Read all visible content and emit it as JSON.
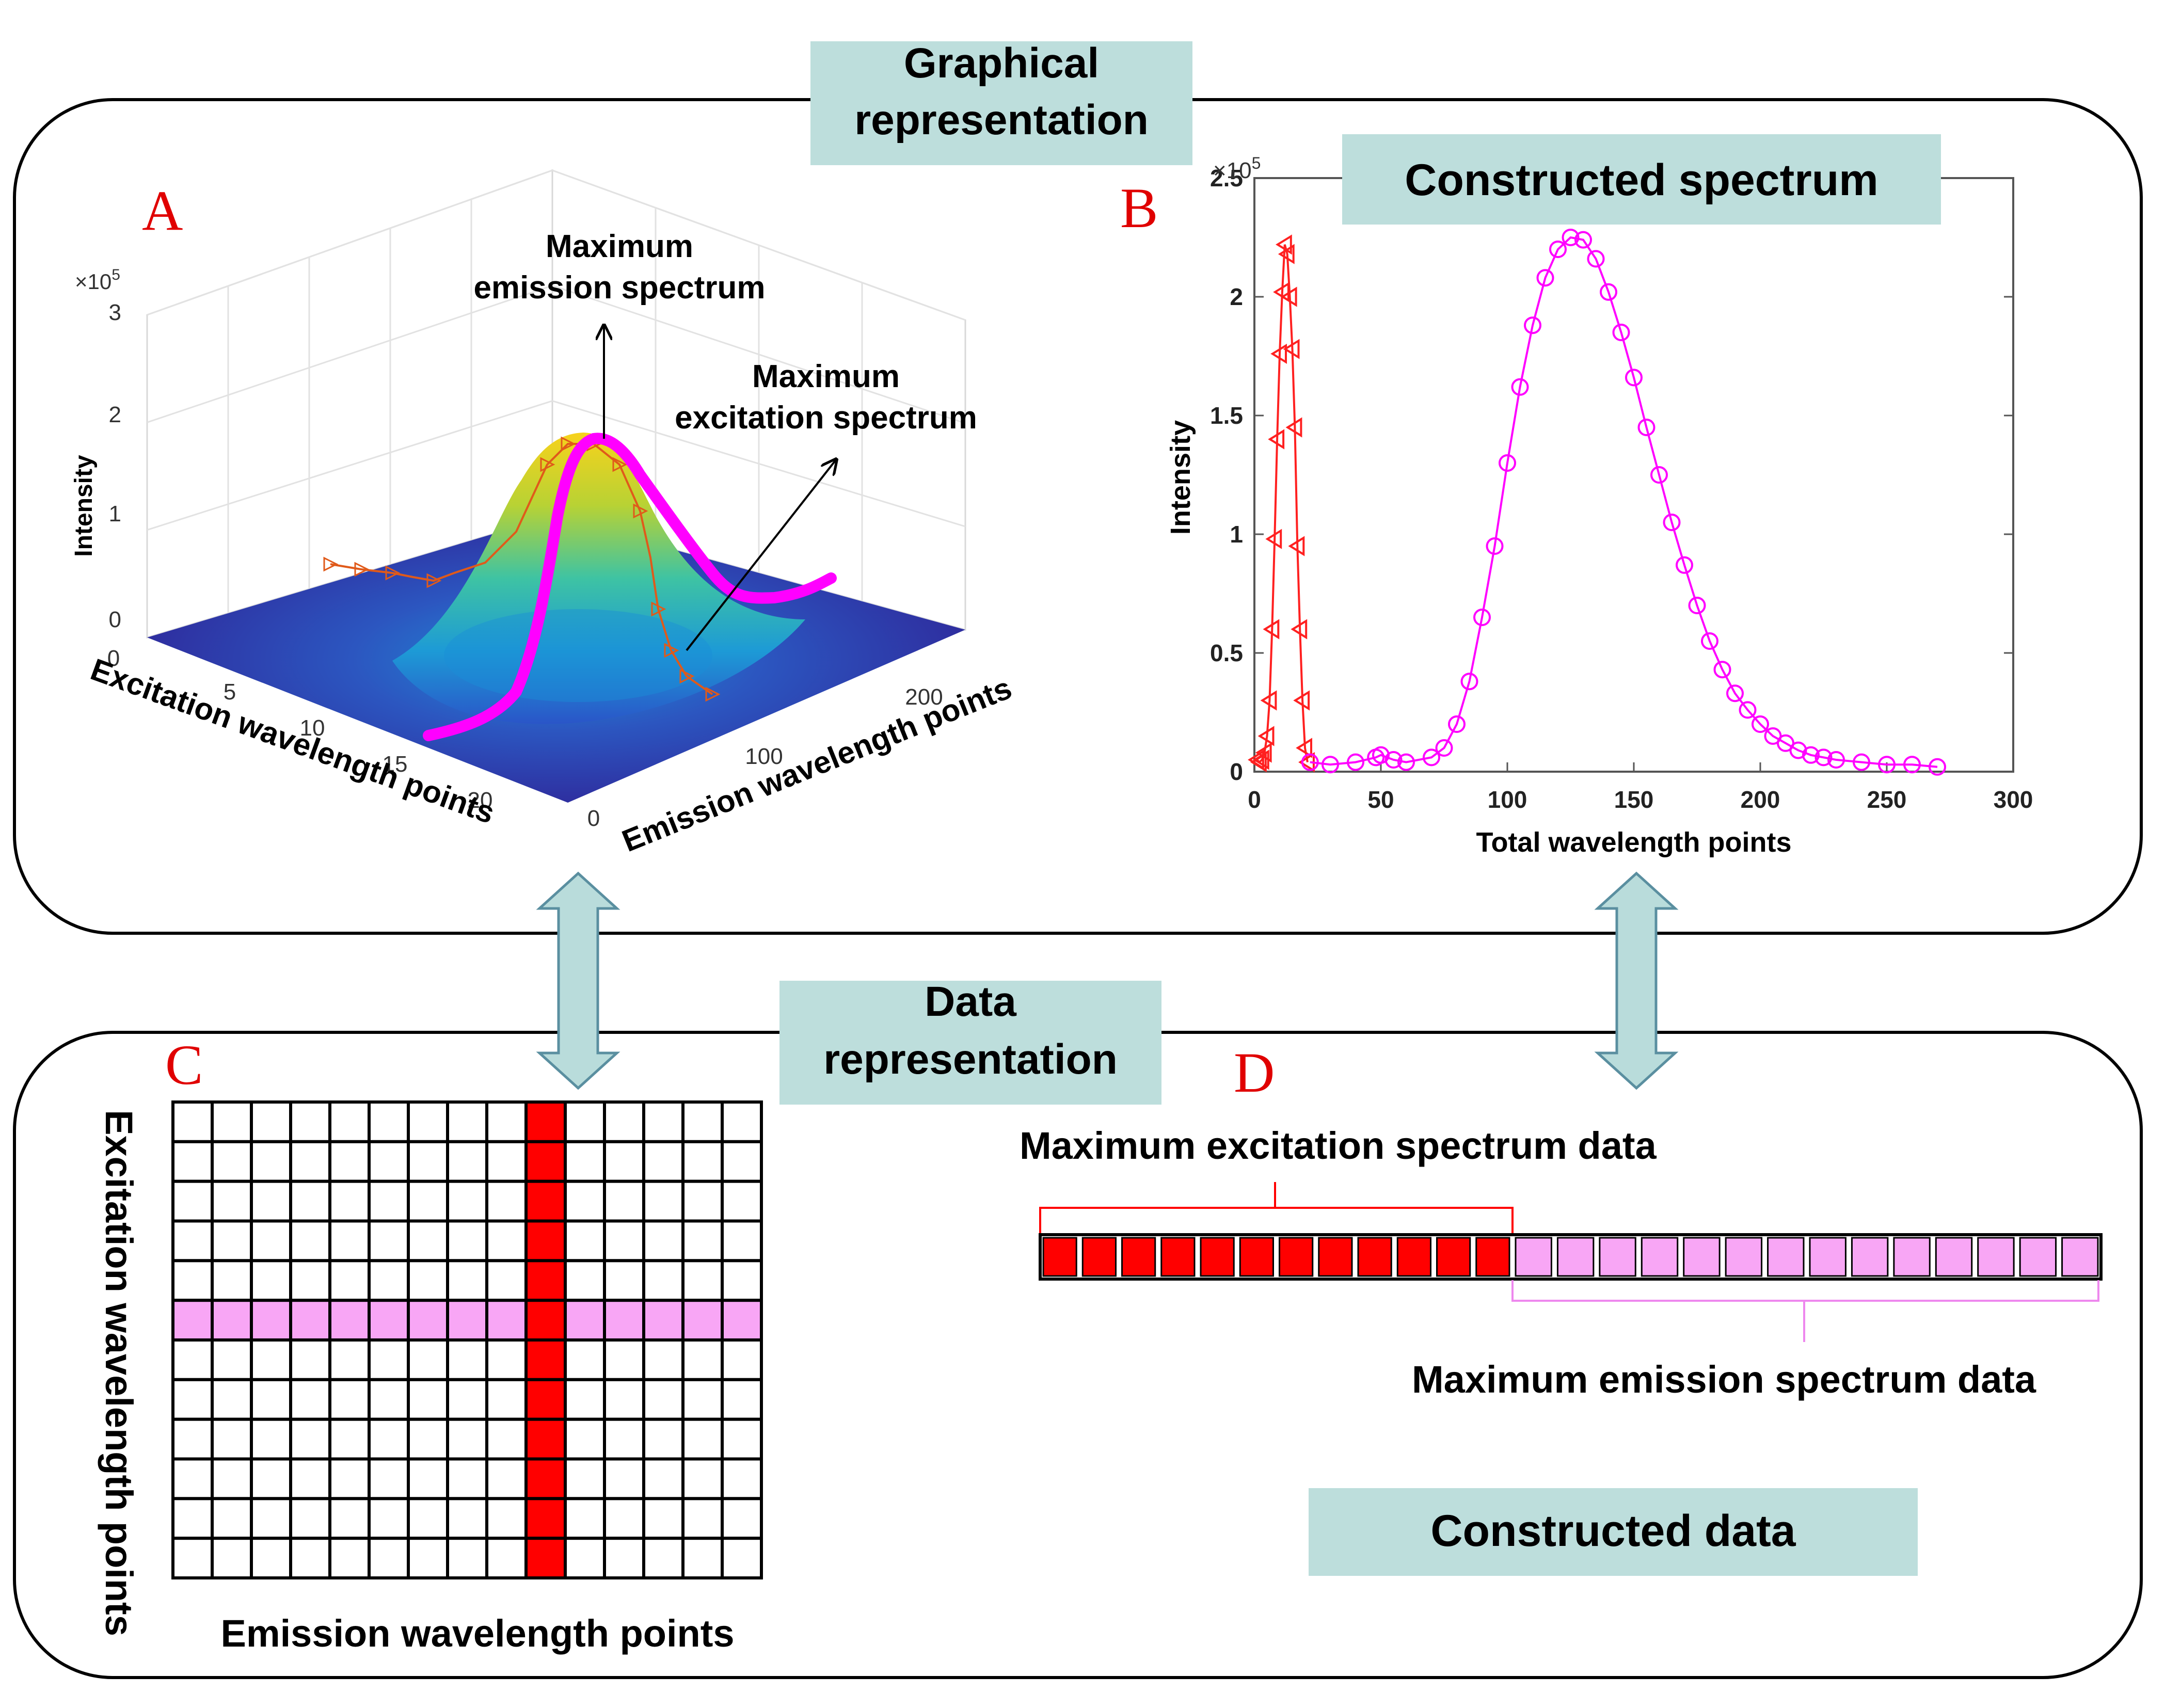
{
  "section_top": {
    "title_line1": "Graphical",
    "title_line2": "representation"
  },
  "section_bottom": {
    "title_line1": "Data",
    "title_line2": "representation"
  },
  "panel_a": {
    "letter": "A",
    "chart_data": {
      "type": "surface3d",
      "title": "",
      "zlabel": "Intensity",
      "z_multiplier": "×10",
      "z_exponent": "5",
      "z_ticks": [
        "0",
        "1",
        "2",
        "3"
      ],
      "xlabel": "Excitation wavelength points",
      "x_ticks": [
        "0",
        "5",
        "10",
        "15",
        "20"
      ],
      "ylabel": "Emission wavelength points",
      "y_ticks": [
        "0",
        "100",
        "200"
      ],
      "peak_intensity": 2.25,
      "annotations": [
        {
          "line1": "Maximum",
          "line2": "emission spectrum"
        },
        {
          "line1": "Maximum",
          "line2": "excitation spectrum"
        }
      ]
    }
  },
  "panel_b": {
    "letter": "B",
    "banner": "Constructed spectrum",
    "chart_data": {
      "type": "line",
      "xlabel": "Total wavelength points",
      "ylabel": "Intensity",
      "y_multiplier": "×10",
      "y_exponent": "5",
      "xlim": [
        0,
        300
      ],
      "ylim": [
        0,
        2.5
      ],
      "x_ticks": [
        "0",
        "50",
        "100",
        "150",
        "200",
        "250",
        "300"
      ],
      "y_ticks": [
        "0",
        "0.5",
        "1",
        "1.5",
        "2",
        "2.5"
      ],
      "series": [
        {
          "name": "Maximum excitation spectrum",
          "color": "#ff2020",
          "marker": "triangle-left",
          "x": [
            1,
            2,
            3,
            4,
            5,
            6,
            7,
            8,
            9,
            10,
            11,
            12,
            13,
            14,
            15,
            16,
            17,
            18,
            19,
            20,
            21
          ],
          "y": [
            0.05,
            0.04,
            0.05,
            0.08,
            0.15,
            0.3,
            0.6,
            0.98,
            1.4,
            1.76,
            2.02,
            2.22,
            2.18,
            2.0,
            1.78,
            1.45,
            0.95,
            0.6,
            0.3,
            0.1,
            0.04
          ]
        },
        {
          "name": "Maximum emission spectrum",
          "color": "#ff00ff",
          "marker": "circle",
          "x": [
            22,
            30,
            40,
            48,
            50,
            55,
            60,
            70,
            75,
            80,
            85,
            90,
            95,
            100,
            105,
            110,
            115,
            120,
            125,
            130,
            135,
            140,
            145,
            150,
            155,
            160,
            165,
            170,
            175,
            180,
            185,
            190,
            195,
            200,
            205,
            210,
            215,
            220,
            225,
            230,
            240,
            250,
            260,
            270
          ],
          "y": [
            0.04,
            0.03,
            0.04,
            0.06,
            0.07,
            0.05,
            0.04,
            0.06,
            0.1,
            0.2,
            0.38,
            0.65,
            0.95,
            1.3,
            1.62,
            1.88,
            2.08,
            2.2,
            2.25,
            2.24,
            2.16,
            2.02,
            1.85,
            1.66,
            1.45,
            1.25,
            1.05,
            0.87,
            0.7,
            0.55,
            0.43,
            0.33,
            0.26,
            0.2,
            0.15,
            0.12,
            0.09,
            0.07,
            0.06,
            0.05,
            0.04,
            0.03,
            0.03,
            0.02
          ]
        }
      ]
    }
  },
  "panel_c": {
    "letter": "C",
    "grid": {
      "rows": 12,
      "cols": 15,
      "highlight_col_index": 9,
      "highlight_row_index": 5
    },
    "ylabel": "Excitation wavelength points",
    "xlabel": "Emission wavelength points",
    "colors": {
      "column": "#ff0000",
      "row": "#f8a6f5"
    }
  },
  "panel_d": {
    "letter": "D",
    "excitation_label": "Maximum excitation spectrum data",
    "emission_label": "Maximum emission spectrum data",
    "banner": "Constructed data",
    "excitation_cells": 12,
    "emission_cells": 14,
    "colors": {
      "excitation": "#ff0000",
      "emission": "#f8a6f5"
    }
  },
  "colors": {
    "banner_bg": "#bddedc",
    "arrow_fill": "#b9dcdb",
    "arrow_stroke": "#5a8fa0",
    "letter": "#e00000"
  }
}
